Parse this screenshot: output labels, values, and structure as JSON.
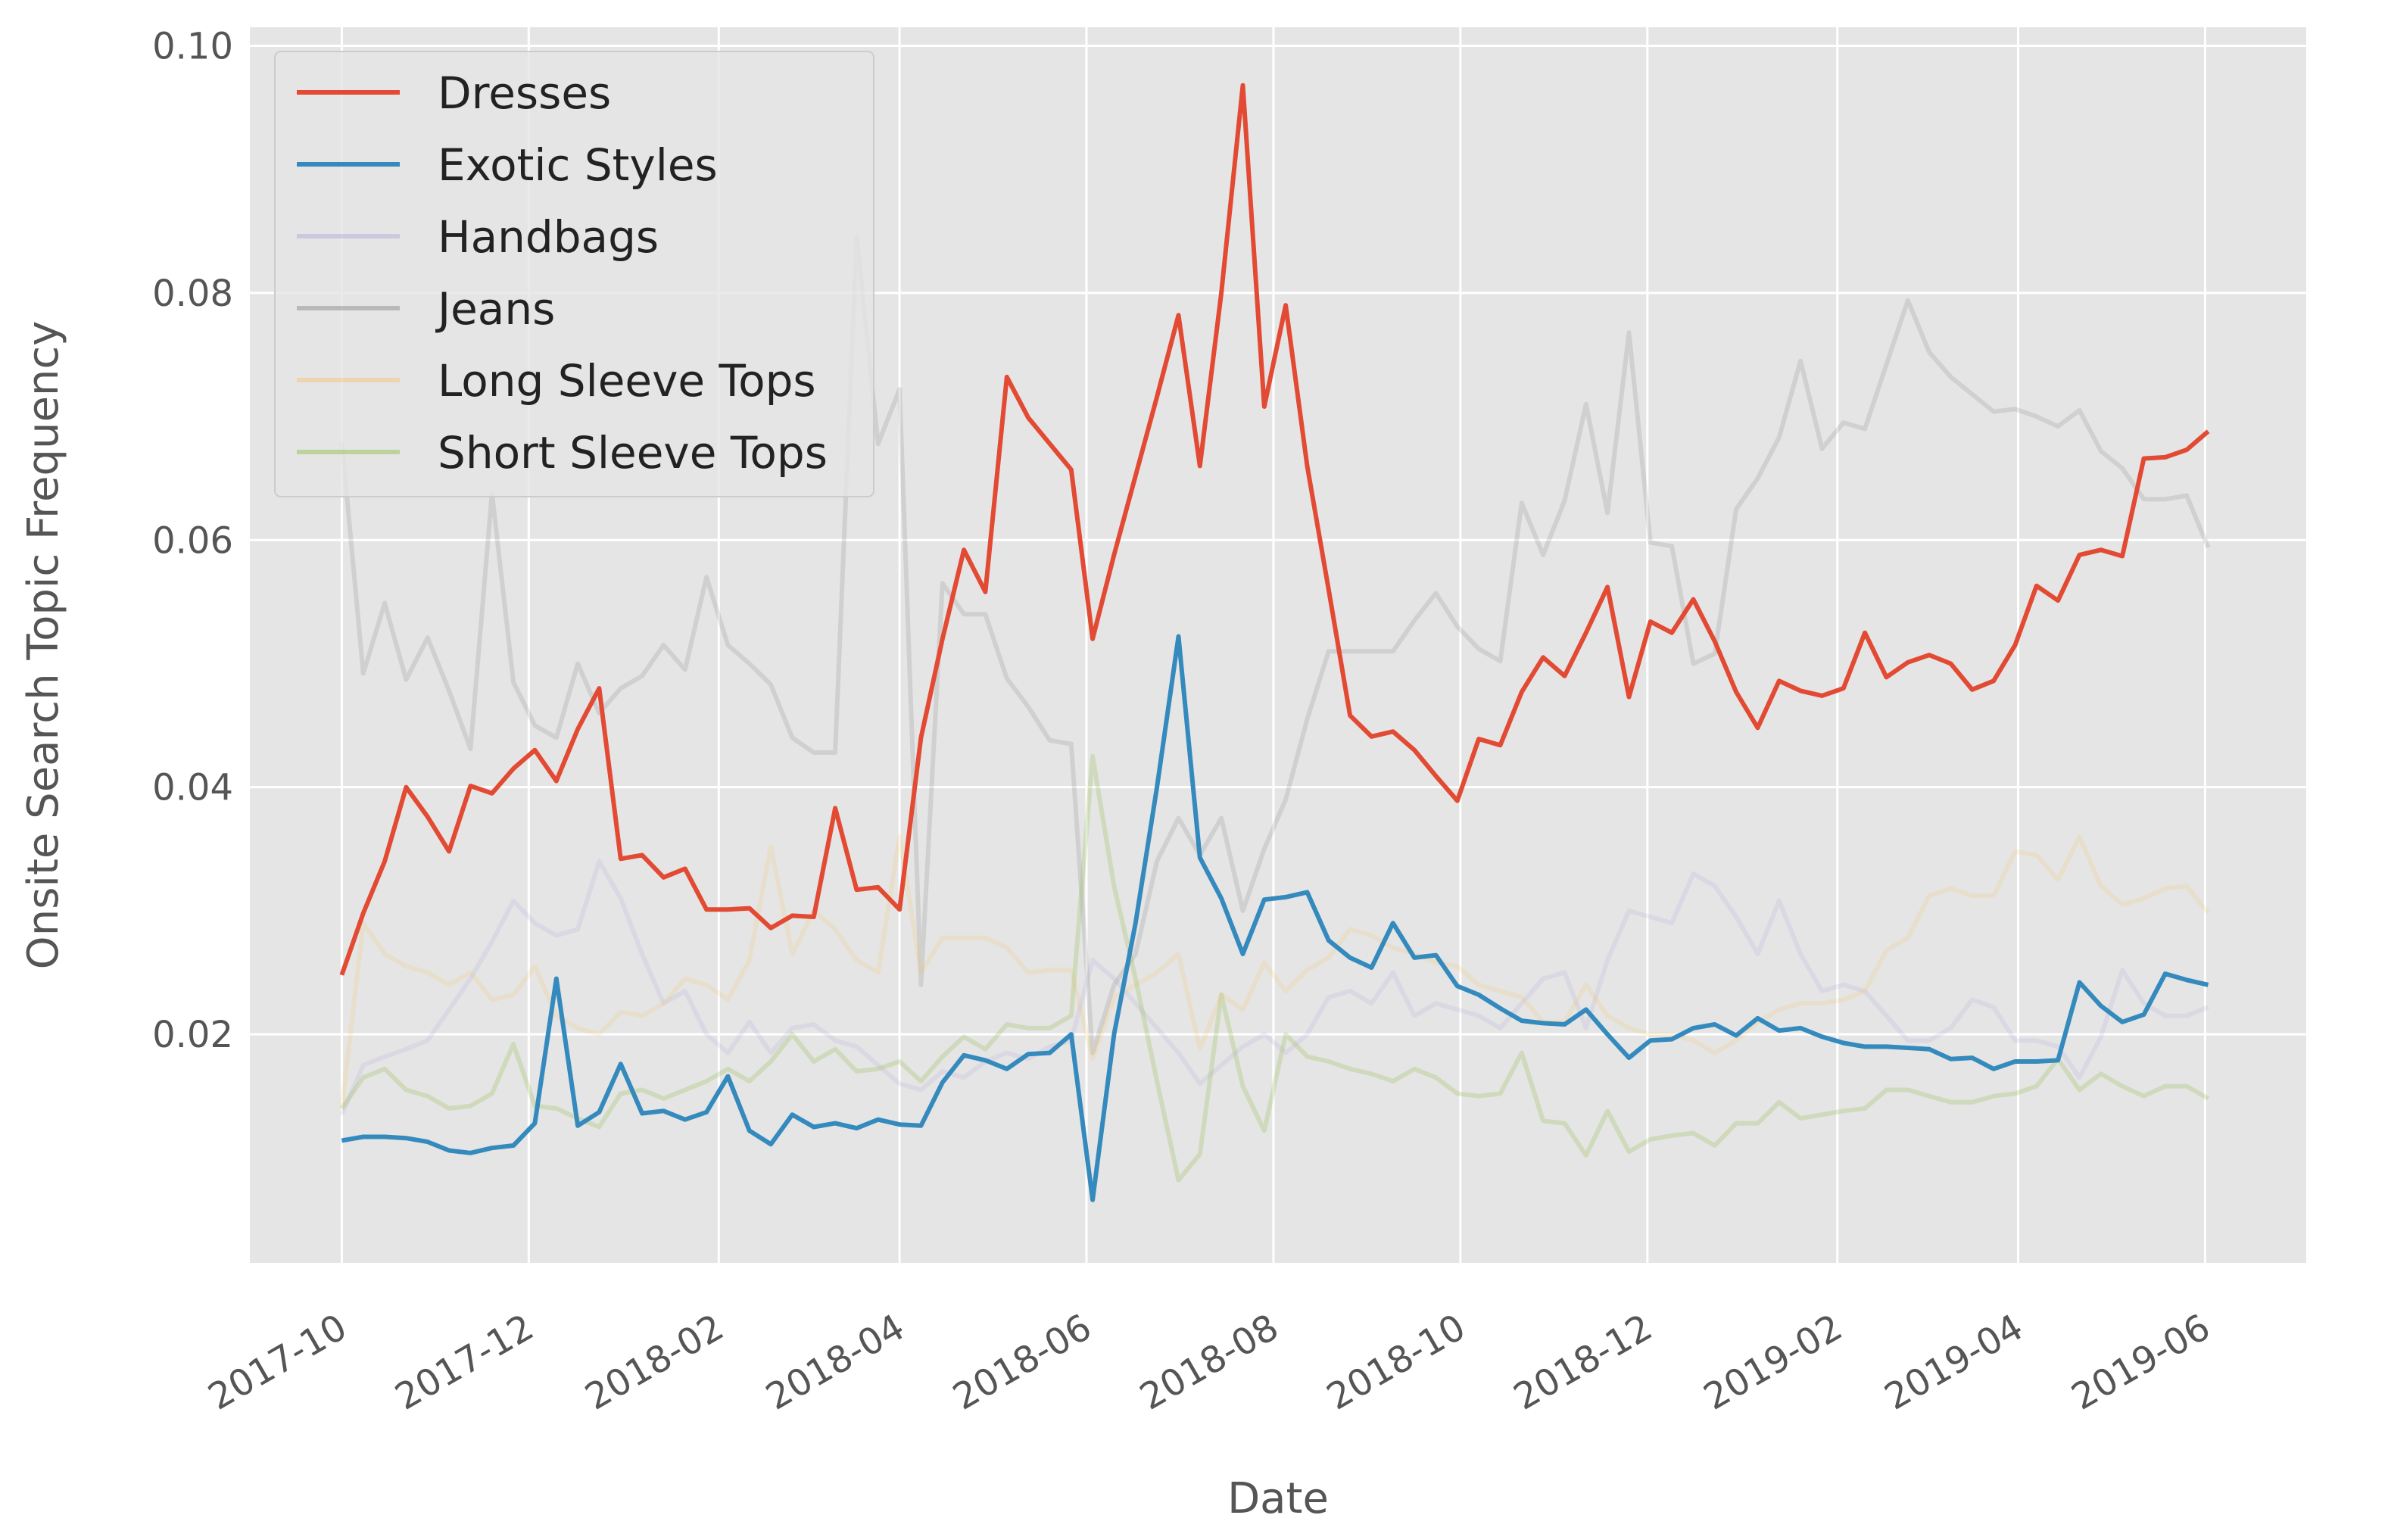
{
  "chart_data": {
    "type": "line",
    "title": "",
    "xlabel": "Date",
    "ylabel": "Onsite Search Topic Frequency",
    "xlim": [
      "2017-09-01",
      "2019-07-04"
    ],
    "ylim": [
      0.0015,
      0.1015
    ],
    "x_ticks": [
      "2017-10",
      "2017-12",
      "2018-02",
      "2018-04",
      "2018-06",
      "2018-08",
      "2018-10",
      "2018-12",
      "2019-02",
      "2019-04",
      "2019-06"
    ],
    "y_ticks": [
      0.02,
      0.04,
      0.06,
      0.08,
      0.1
    ],
    "y_tick_labels": [
      "0.02",
      "0.04",
      "0.06",
      "0.08",
      "0.10"
    ],
    "grid": true,
    "legend": "top-left",
    "background": "#e5e5e5",
    "x": [
      "2017-10-01",
      "2017-10-08",
      "2017-10-15",
      "2017-10-22",
      "2017-10-29",
      "2017-11-05",
      "2017-11-12",
      "2017-11-19",
      "2017-11-26",
      "2017-12-03",
      "2017-12-10",
      "2017-12-17",
      "2017-12-24",
      "2017-12-31",
      "2018-01-07",
      "2018-01-14",
      "2018-01-21",
      "2018-01-28",
      "2018-02-04",
      "2018-02-11",
      "2018-02-18",
      "2018-02-25",
      "2018-03-04",
      "2018-03-11",
      "2018-03-18",
      "2018-03-25",
      "2018-04-01",
      "2018-04-08",
      "2018-04-15",
      "2018-04-22",
      "2018-04-29",
      "2018-05-06",
      "2018-05-13",
      "2018-05-20",
      "2018-05-27",
      "2018-06-03",
      "2018-06-10",
      "2018-06-17",
      "2018-06-24",
      "2018-07-01",
      "2018-07-08",
      "2018-07-15",
      "2018-07-22",
      "2018-07-29",
      "2018-08-05",
      "2018-08-12",
      "2018-08-19",
      "2018-08-26",
      "2018-09-02",
      "2018-09-09",
      "2018-09-16",
      "2018-09-23",
      "2018-09-30",
      "2018-10-07",
      "2018-10-14",
      "2018-10-21",
      "2018-10-28",
      "2018-11-04",
      "2018-11-11",
      "2018-11-18",
      "2018-11-25",
      "2018-12-02",
      "2018-12-09",
      "2018-12-16",
      "2018-12-23",
      "2018-12-30",
      "2019-01-06",
      "2019-01-13",
      "2019-01-20",
      "2019-01-27",
      "2019-02-03",
      "2019-02-10",
      "2019-02-17",
      "2019-02-24",
      "2019-03-03",
      "2019-03-10",
      "2019-03-17",
      "2019-03-24",
      "2019-03-31",
      "2019-04-07",
      "2019-04-14",
      "2019-04-21",
      "2019-04-28",
      "2019-05-05",
      "2019-05-12",
      "2019-05-19",
      "2019-05-26",
      "2019-06-02"
    ],
    "series": [
      {
        "name": "Dresses",
        "color": "#E24A33",
        "opacity": 1.0,
        "values": [
          0.0248,
          0.0298,
          0.034,
          0.04,
          0.0376,
          0.0348,
          0.0401,
          0.0395,
          0.0415,
          0.043,
          0.0405,
          0.0447,
          0.048,
          0.0342,
          0.0345,
          0.0327,
          0.0334,
          0.0301,
          0.0301,
          0.0302,
          0.0286,
          0.0296,
          0.0295,
          0.0383,
          0.0317,
          0.0319,
          0.0301,
          0.044,
          0.052,
          0.0592,
          0.0558,
          0.0732,
          0.0699,
          0.0678,
          0.0657,
          0.052,
          0.0588,
          0.0652,
          0.0716,
          0.0782,
          0.066,
          0.08,
          0.0968,
          0.0708,
          0.079,
          0.066,
          0.056,
          0.0458,
          0.0441,
          0.0445,
          0.043,
          0.0409,
          0.0389,
          0.0439,
          0.0434,
          0.0477,
          0.0505,
          0.049,
          0.0525,
          0.0562,
          0.0473,
          0.0534,
          0.0525,
          0.0552,
          0.0518,
          0.0477,
          0.0448,
          0.0486,
          0.0478,
          0.0474,
          0.048,
          0.0525,
          0.0489,
          0.0501,
          0.0507,
          0.05,
          0.0479,
          0.0486,
          0.0515,
          0.0563,
          0.0551,
          0.0588,
          0.0592,
          0.0587,
          0.0666,
          0.0667,
          0.0673,
          0.0688
        ]
      },
      {
        "name": "Exotic Styles",
        "color": "#348ABD",
        "opacity": 1.0,
        "values": [
          0.0114,
          0.0117,
          0.0117,
          0.0116,
          0.0113,
          0.0106,
          0.0104,
          0.0108,
          0.011,
          0.0128,
          0.0245,
          0.0126,
          0.0137,
          0.0176,
          0.0136,
          0.0138,
          0.0131,
          0.0137,
          0.0166,
          0.0122,
          0.0111,
          0.0135,
          0.0125,
          0.0128,
          0.0124,
          0.0131,
          0.0127,
          0.0126,
          0.0161,
          0.0183,
          0.0179,
          0.0172,
          0.0184,
          0.0185,
          0.02,
          0.0066,
          0.02,
          0.029,
          0.04,
          0.0522,
          0.0343,
          0.031,
          0.0265,
          0.0309,
          0.0311,
          0.0315,
          0.0276,
          0.0262,
          0.0254,
          0.029,
          0.0262,
          0.0264,
          0.0239,
          0.0232,
          0.0221,
          0.0211,
          0.0209,
          0.0208,
          0.022,
          0.02,
          0.0181,
          0.0195,
          0.0196,
          0.0205,
          0.0208,
          0.0199,
          0.0213,
          0.0203,
          0.0205,
          0.0198,
          0.0193,
          0.019,
          0.019,
          0.0189,
          0.0188,
          0.018,
          0.0181,
          0.0172,
          0.0178,
          0.0178,
          0.0179,
          0.0242,
          0.0223,
          0.021,
          0.0216,
          0.0249,
          0.0244,
          0.024
        ]
      },
      {
        "name": "Handbags",
        "color": "#988ED5",
        "opacity": 0.15,
        "values": [
          0.0135,
          0.0175,
          0.0182,
          0.0188,
          0.0195,
          0.022,
          0.0245,
          0.0275,
          0.0308,
          0.029,
          0.028,
          0.0285,
          0.034,
          0.031,
          0.0265,
          0.0225,
          0.0235,
          0.02,
          0.0185,
          0.021,
          0.0185,
          0.0205,
          0.0208,
          0.0195,
          0.019,
          0.0175,
          0.016,
          0.0155,
          0.017,
          0.0165,
          0.0178,
          0.0185,
          0.018,
          0.019,
          0.0195,
          0.026,
          0.0245,
          0.0225,
          0.0205,
          0.0185,
          0.016,
          0.0175,
          0.019,
          0.02,
          0.0185,
          0.02,
          0.023,
          0.0235,
          0.0225,
          0.025,
          0.0215,
          0.0225,
          0.022,
          0.0215,
          0.0205,
          0.0225,
          0.0245,
          0.025,
          0.0205,
          0.026,
          0.03,
          0.0295,
          0.029,
          0.033,
          0.032,
          0.0295,
          0.0265,
          0.0308,
          0.0265,
          0.0235,
          0.024,
          0.0235,
          0.0215,
          0.0195,
          0.0195,
          0.0205,
          0.0228,
          0.0222,
          0.0195,
          0.0195,
          0.019,
          0.0165,
          0.0198,
          0.0252,
          0.0225,
          0.0215,
          0.0215,
          0.0222
        ]
      },
      {
        "name": "Jeans",
        "color": "#777777",
        "opacity": 0.18,
        "values": [
          0.068,
          0.0492,
          0.0549,
          0.0487,
          0.0521,
          0.0478,
          0.0431,
          0.0638,
          0.0485,
          0.045,
          0.044,
          0.05,
          0.046,
          0.048,
          0.049,
          0.0515,
          0.0495,
          0.057,
          0.0515,
          0.05,
          0.0483,
          0.044,
          0.0428,
          0.0428,
          0.0845,
          0.0678,
          0.0722,
          0.024,
          0.0565,
          0.054,
          0.054,
          0.0488,
          0.0465,
          0.0438,
          0.0435,
          0.0185,
          0.024,
          0.0265,
          0.034,
          0.0375,
          0.0345,
          0.0375,
          0.03,
          0.035,
          0.039,
          0.0455,
          0.051,
          0.051,
          0.051,
          0.051,
          0.0535,
          0.0557,
          0.053,
          0.0512,
          0.0502,
          0.063,
          0.0588,
          0.0632,
          0.071,
          0.0622,
          0.0768,
          0.0598,
          0.0595,
          0.05,
          0.0508,
          0.0625,
          0.065,
          0.0683,
          0.0745,
          0.0674,
          0.0695,
          0.069,
          0.0742,
          0.0794,
          0.0752,
          0.0732,
          0.0718,
          0.0704,
          0.0706,
          0.07,
          0.0692,
          0.0705,
          0.0672,
          0.0658,
          0.0633,
          0.0633,
          0.0636,
          0.0594
        ]
      },
      {
        "name": "Long Sleeve Tops",
        "color": "#FBC15E",
        "opacity": 0.18,
        "values": [
          0.014,
          0.029,
          0.0265,
          0.0255,
          0.025,
          0.024,
          0.025,
          0.0228,
          0.0232,
          0.0255,
          0.0215,
          0.0205,
          0.02,
          0.0218,
          0.0215,
          0.0225,
          0.0245,
          0.024,
          0.0228,
          0.026,
          0.0352,
          0.0265,
          0.03,
          0.0285,
          0.026,
          0.025,
          0.036,
          0.025,
          0.0278,
          0.0278,
          0.0278,
          0.027,
          0.025,
          0.0252,
          0.0252,
          0.018,
          0.023,
          0.024,
          0.025,
          0.0265,
          0.0188,
          0.0232,
          0.022,
          0.0258,
          0.0235,
          0.0252,
          0.0262,
          0.0285,
          0.028,
          0.027,
          0.0265,
          0.0258,
          0.0255,
          0.024,
          0.0235,
          0.023,
          0.021,
          0.021,
          0.024,
          0.0215,
          0.0205,
          0.02,
          0.02,
          0.0195,
          0.0185,
          0.0195,
          0.021,
          0.022,
          0.0225,
          0.0225,
          0.0228,
          0.0235,
          0.0268,
          0.0278,
          0.0312,
          0.0318,
          0.0312,
          0.0312,
          0.0348,
          0.0345,
          0.0325,
          0.036,
          0.032,
          0.0305,
          0.031,
          0.0318,
          0.032,
          0.0298
        ]
      },
      {
        "name": "Short Sleeve Tops",
        "color": "#8EBA42",
        "opacity": 0.25,
        "values": [
          0.014,
          0.0165,
          0.0172,
          0.0155,
          0.015,
          0.014,
          0.0142,
          0.0152,
          0.0192,
          0.0142,
          0.014,
          0.0132,
          0.0125,
          0.0152,
          0.0155,
          0.0148,
          0.0155,
          0.0162,
          0.0172,
          0.0162,
          0.0178,
          0.02,
          0.0178,
          0.0188,
          0.017,
          0.0172,
          0.0178,
          0.0162,
          0.0182,
          0.0198,
          0.0188,
          0.0208,
          0.0205,
          0.0205,
          0.0215,
          0.0425,
          0.032,
          0.0245,
          0.0162,
          0.0082,
          0.0103,
          0.0232,
          0.0158,
          0.0122,
          0.02,
          0.0182,
          0.0178,
          0.0172,
          0.0168,
          0.0162,
          0.0172,
          0.0165,
          0.0152,
          0.015,
          0.0152,
          0.0185,
          0.013,
          0.0128,
          0.0102,
          0.0138,
          0.0105,
          0.0115,
          0.0118,
          0.012,
          0.011,
          0.0128,
          0.0128,
          0.0145,
          0.0132,
          0.0135,
          0.0138,
          0.014,
          0.0155,
          0.0155,
          0.015,
          0.0145,
          0.0145,
          0.015,
          0.0152,
          0.0158,
          0.018,
          0.0155,
          0.0168,
          0.0158,
          0.015,
          0.0158,
          0.0158,
          0.0148
        ]
      }
    ]
  }
}
